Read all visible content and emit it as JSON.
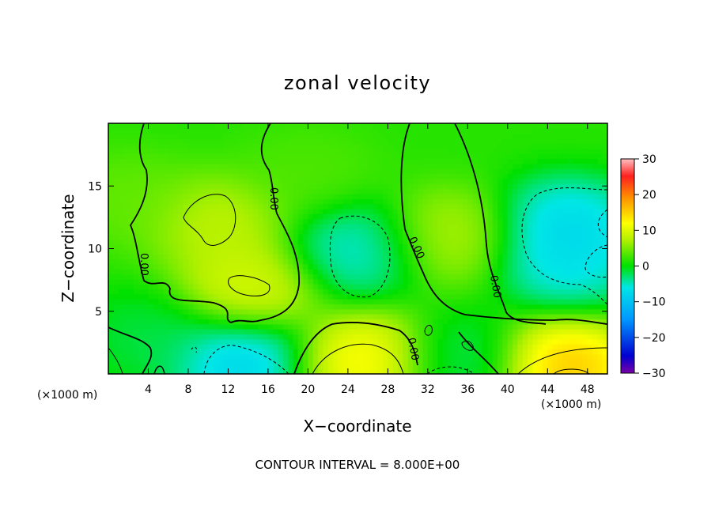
{
  "chart_data": {
    "type": "heatmap",
    "title": "zonal velocity",
    "xlabel": "X−coordinate",
    "ylabel": "Z−coordinate",
    "x_unit": "(×1000 m)",
    "z_unit": "(×1000 m)",
    "xlim": [
      0,
      50
    ],
    "ylim": [
      0,
      20
    ],
    "x_ticks": [
      "4",
      "8",
      "12",
      "16",
      "20",
      "24",
      "28",
      "32",
      "36",
      "40",
      "44",
      "48"
    ],
    "y_ticks": [
      "5",
      "10",
      "15"
    ],
    "colorbar": {
      "range": [
        -30,
        30
      ],
      "ticks": [
        "30",
        "20",
        "10",
        "0",
        "−10",
        "−20",
        "−30"
      ]
    },
    "contour_interval_text": "CONTOUR INTERVAL = 8.000E+00",
    "contour_level_label": "0.00",
    "field_centers": [
      {
        "x": 11,
        "z": 12,
        "value": 8
      },
      {
        "x": 14,
        "z": 7,
        "value": 10
      },
      {
        "x": 25,
        "z": 10,
        "value": -9
      },
      {
        "x": 34,
        "z": 11,
        "value": 7
      },
      {
        "x": 46,
        "z": 12,
        "value": -11
      },
      {
        "x": 46,
        "z": 9,
        "value": -10
      },
      {
        "x": 13,
        "z": 1,
        "value": -12
      },
      {
        "x": 26,
        "z": 1,
        "value": 14
      },
      {
        "x": 46,
        "z": 0.5,
        "value": 18
      },
      {
        "x": 4,
        "z": 3,
        "value": -4
      },
      {
        "x": 35,
        "z": 1,
        "value": -5
      },
      {
        "x": 2,
        "z": 14,
        "value": 3
      },
      {
        "x": 20,
        "z": 16,
        "value": 2
      }
    ]
  }
}
